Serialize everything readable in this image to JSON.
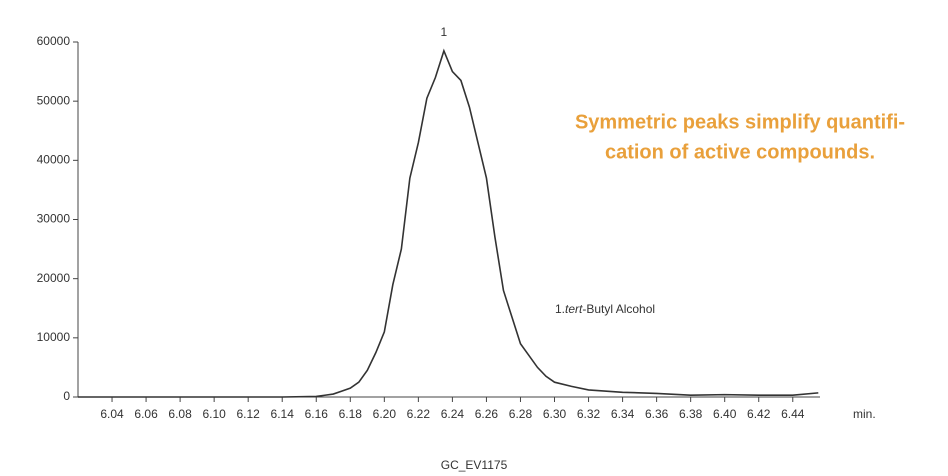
{
  "chart_data": {
    "type": "line",
    "x": [
      6.02,
      6.04,
      6.06,
      6.08,
      6.1,
      6.12,
      6.14,
      6.16,
      6.165,
      6.17,
      6.175,
      6.18,
      6.185,
      6.19,
      6.195,
      6.2,
      6.205,
      6.21,
      6.215,
      6.22,
      6.225,
      6.23,
      6.235,
      6.24,
      6.245,
      6.25,
      6.255,
      6.26,
      6.265,
      6.27,
      6.275,
      6.28,
      6.285,
      6.29,
      6.295,
      6.3,
      6.31,
      6.32,
      6.34,
      6.36,
      6.38,
      6.4,
      6.42,
      6.44,
      6.455
    ],
    "values": [
      0,
      0,
      0,
      0,
      0,
      0,
      0,
      100,
      300,
      500,
      1000,
      1500,
      2500,
      4500,
      7500,
      11000,
      19000,
      25000,
      37000,
      43000,
      50500,
      54000,
      58500,
      55000,
      53500,
      49000,
      43000,
      37000,
      27000,
      18000,
      13500,
      9000,
      7000,
      5000,
      3500,
      2500,
      1800,
      1200,
      800,
      600,
      300,
      400,
      300,
      300,
      700
    ],
    "color": "#333333",
    "xlim": [
      6.02,
      6.456
    ],
    "ylim": [
      0,
      60000
    ],
    "xticks": [
      6.04,
      6.06,
      6.08,
      {
        "value": 6.1,
        "label": "6.10"
      },
      6.12,
      6.14,
      6.16,
      6.18,
      {
        "value": 6.2,
        "label": "6.20"
      },
      6.22,
      6.24,
      6.26,
      6.28,
      {
        "value": 6.3,
        "label": "6.30"
      },
      6.32,
      6.34,
      6.36,
      6.38,
      {
        "value": 6.4,
        "label": "6.40"
      },
      6.42,
      6.44
    ],
    "yticks": [
      0,
      10000,
      20000,
      30000,
      40000,
      50000,
      60000
    ],
    "x_unit": "min.",
    "peak_label": "1",
    "compound_label": {
      "prefix": "1.",
      "italic": "tert",
      "rest": "-Butyl Alcohol"
    },
    "callout": [
      "Symmetric peaks simplify quantifi-",
      "cation of active compounds."
    ],
    "footer": "GC_EV1175"
  }
}
